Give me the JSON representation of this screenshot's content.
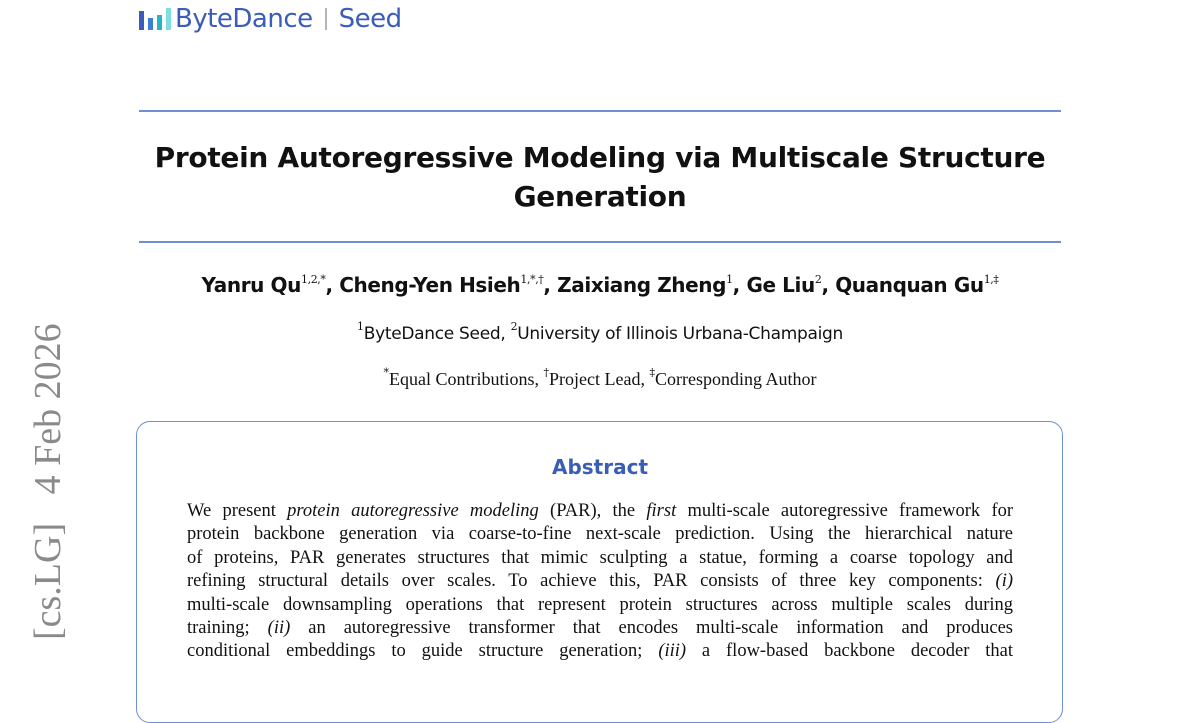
{
  "logo": {
    "brand": "ByteDance",
    "product": "Seed",
    "color": "#3b5cb8"
  },
  "sidebar": {
    "arxiv_stamp": "[cs.LG]   4 Feb 2026"
  },
  "paper": {
    "title_line1": "Protein Autoregressive Modeling via Multiscale Structure",
    "title_line2": "Generation",
    "authors": [
      {
        "name": "Yanru Qu",
        "marks": "1,2,*",
        "sep": ", "
      },
      {
        "name": "Cheng-Yen Hsieh",
        "marks": "1,*,†",
        "sep": ", "
      },
      {
        "name": "Zaixiang Zheng",
        "marks": "1",
        "sep": ", "
      },
      {
        "name": "Ge Liu",
        "marks": "2",
        "sep": ", "
      },
      {
        "name": "Quanquan Gu",
        "marks": "1,‡",
        "sep": ""
      }
    ],
    "affiliations": [
      {
        "mark": "1",
        "name": "ByteDance Seed",
        "sep": ", "
      },
      {
        "mark": "2",
        "name": "University of Illinois Urbana-Champaign",
        "sep": ""
      }
    ],
    "notes": [
      {
        "mark": "*",
        "text": "Equal Contributions",
        "sep": ", "
      },
      {
        "mark": "†",
        "text": "Project Lead",
        "sep": ", "
      },
      {
        "mark": "‡",
        "text": "Corresponding Author",
        "sep": ""
      }
    ],
    "abstract_heading": "Abstract",
    "abstract_lines": [
      [
        {
          "t": "We present "
        },
        {
          "t": "protein autoregressive modeling",
          "i": true
        },
        {
          "t": " (PAR), the "
        },
        {
          "t": "first",
          "i": true
        },
        {
          "t": " multi-scale autoregressive framework for"
        }
      ],
      [
        {
          "t": "protein backbone generation via coarse-to-fine next-scale prediction. Using the hierarchical nature"
        }
      ],
      [
        {
          "t": "of proteins, PAR generates structures that mimic sculpting a statue, forming a coarse topology and"
        }
      ],
      [
        {
          "t": "refining structural details over scales. To achieve this, PAR consists of three key components: "
        },
        {
          "t": "(i)",
          "i": true
        }
      ],
      [
        {
          "t": "multi-scale downsampling operations that represent protein structures across multiple scales during"
        }
      ],
      [
        {
          "t": "training; "
        },
        {
          "t": "(ii)",
          "i": true
        },
        {
          "t": " an autoregressive transformer that encodes multi-scale information and produces"
        }
      ],
      [
        {
          "t": "conditional embeddings to guide structure generation; "
        },
        {
          "t": "(iii)",
          "i": true
        },
        {
          "t": " a flow-based backbone decoder that"
        }
      ]
    ]
  }
}
